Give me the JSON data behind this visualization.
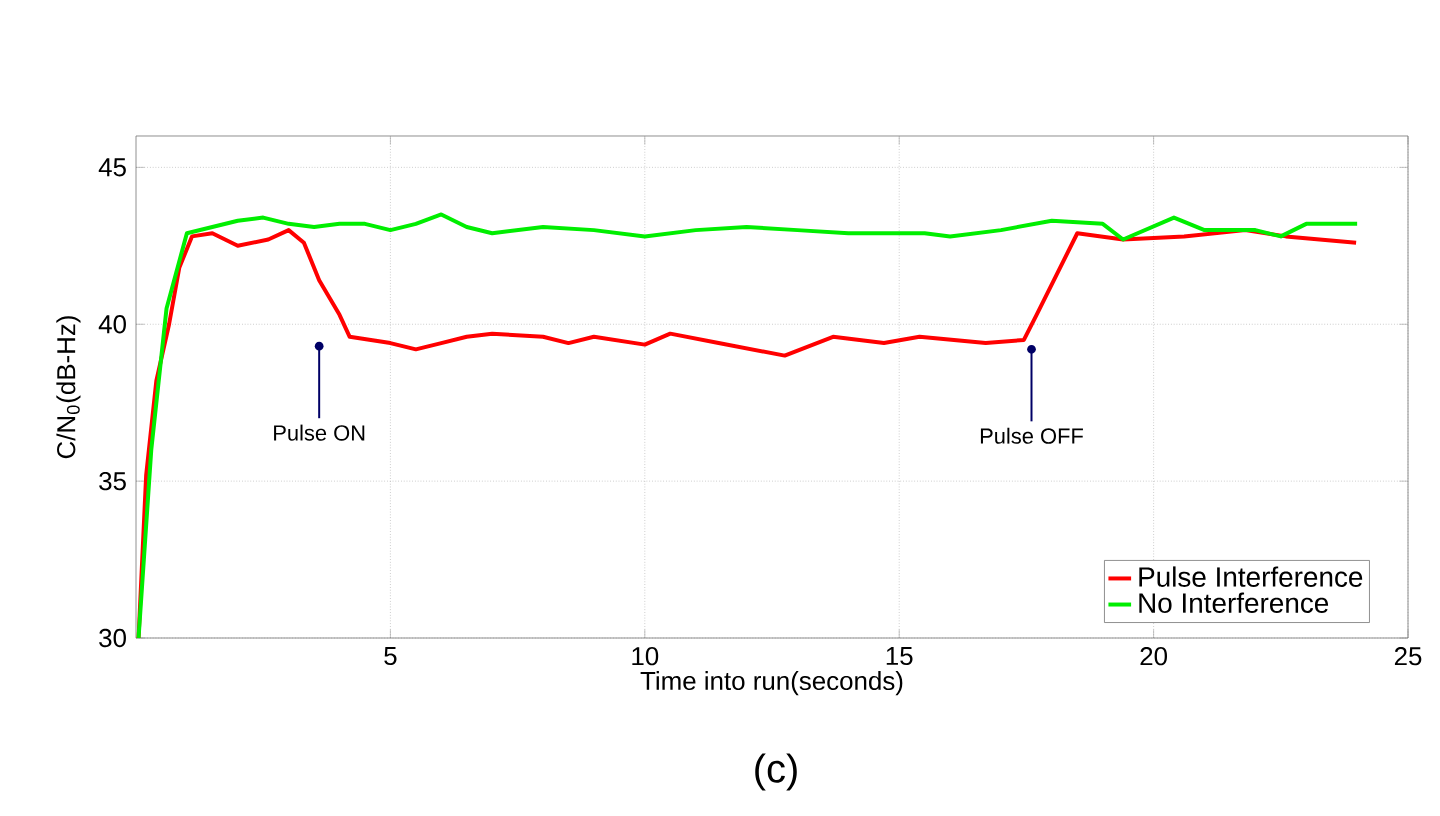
{
  "chart_data": {
    "type": "line",
    "xlabel": "Time into run(seconds)",
    "ylabel": "C/N$_{0}$(dB-Hz)",
    "xlim": [
      0,
      25
    ],
    "xticks": [
      5,
      10,
      15,
      20,
      25
    ],
    "ylim": [
      30,
      46
    ],
    "yticks": [
      30,
      35,
      40,
      45
    ],
    "grid": true,
    "legend": "bottom right",
    "series": [
      {
        "name": "Pulse Interference",
        "color": "#ff0000",
        "x": [
          0.05,
          0.2,
          0.4,
          0.65,
          0.85,
          1.1,
          1.5,
          2.0,
          2.6,
          3.0,
          3.3,
          3.6,
          4.0,
          4.2,
          5.0,
          5.5,
          6.0,
          6.5,
          7.0,
          8.0,
          8.5,
          9.0,
          10.0,
          10.5,
          11.45,
          12.75,
          13.7,
          14.7,
          15.4,
          16.7,
          17.45,
          17.7,
          18.5,
          19.4,
          20.6,
          21.8,
          22.6,
          23.98
        ],
        "values": [
          30,
          35.2,
          38.2,
          40.0,
          41.8,
          42.8,
          42.9,
          42.5,
          42.7,
          43.0,
          42.6,
          41.4,
          40.3,
          39.6,
          39.4,
          39.2,
          39.4,
          39.6,
          39.7,
          39.6,
          39.4,
          39.6,
          39.35,
          39.7,
          39.4,
          39.0,
          39.6,
          39.4,
          39.6,
          39.4,
          39.5,
          40.3,
          42.9,
          42.7,
          42.8,
          43.0,
          42.8,
          42.6
        ]
      },
      {
        "name": "No Interference",
        "color": "#00ee00",
        "x": [
          0.05,
          0.3,
          0.6,
          1.0,
          1.5,
          2.0,
          2.5,
          3.0,
          3.5,
          4.0,
          4.5,
          5.0,
          5.5,
          6.0,
          6.5,
          7.0,
          8.0,
          9.0,
          10.0,
          11.0,
          12.0,
          13.0,
          14.0,
          15.5,
          16.0,
          17.0,
          18.0,
          19.0,
          19.4,
          20.4,
          21.0,
          22.0,
          22.5,
          23.0,
          24.0
        ],
        "values": [
          30,
          36,
          40.5,
          42.9,
          43.1,
          43.3,
          43.4,
          43.2,
          43.1,
          43.2,
          43.2,
          43.0,
          43.2,
          43.5,
          43.1,
          42.9,
          43.1,
          43.0,
          42.8,
          43.0,
          43.1,
          43.0,
          42.9,
          42.9,
          42.8,
          43.0,
          43.3,
          43.2,
          42.7,
          43.4,
          43.0,
          43.0,
          42.8,
          43.2,
          43.2
        ]
      }
    ],
    "annotations": [
      {
        "text": "Pulse ON",
        "x": 3.6,
        "y": 39.3
      },
      {
        "text": "Pulse OFF",
        "x": 17.6,
        "y": 39.2
      },
      "(c)"
    ]
  }
}
